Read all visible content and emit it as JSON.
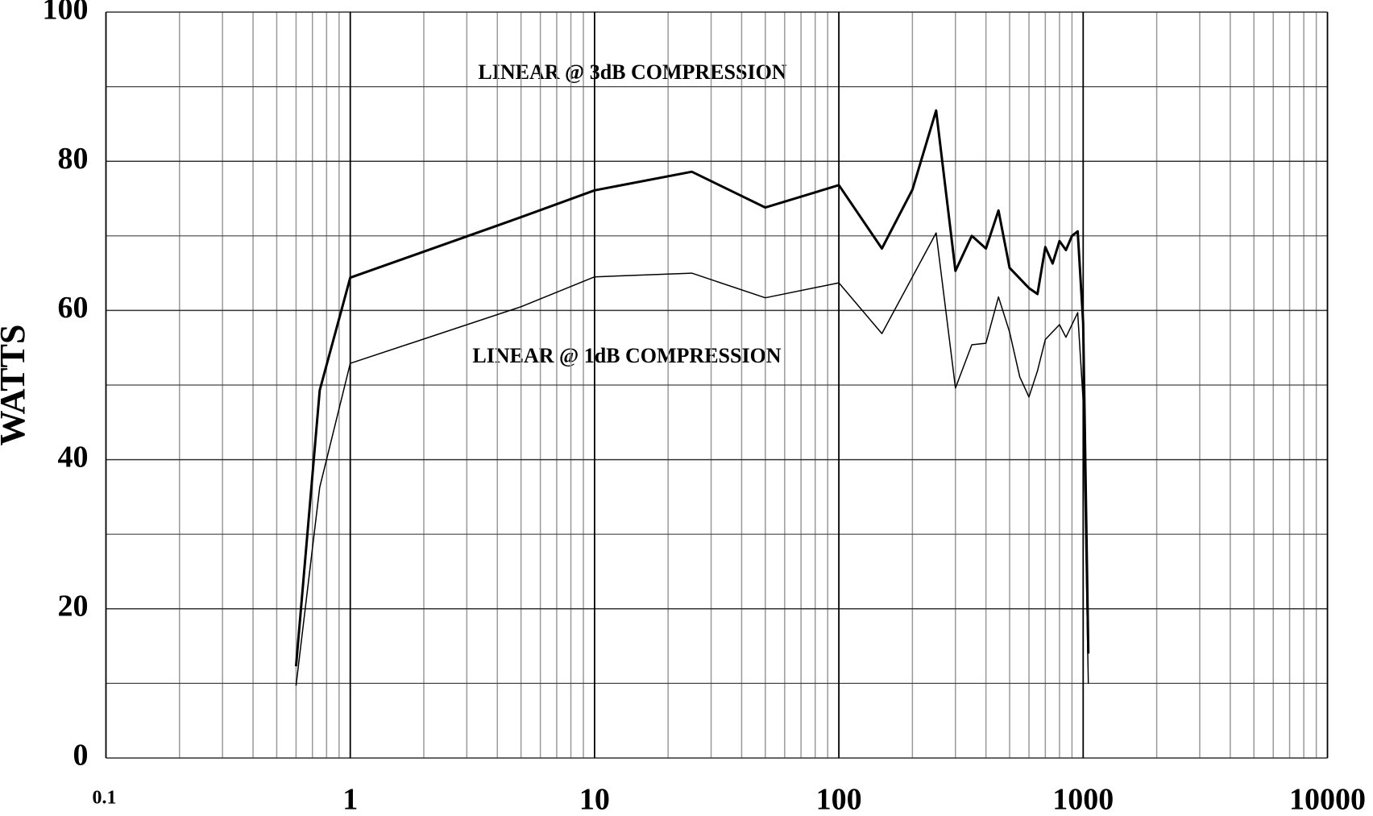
{
  "chart_data": {
    "type": "line",
    "y_label": "WATTS",
    "log_x": true,
    "grid": true,
    "xlim": [
      0.1,
      10000
    ],
    "ylim": [
      0,
      100
    ],
    "xticks": [
      {
        "value": 0.1,
        "label": "0.1"
      },
      1,
      10,
      100,
      1000,
      10000
    ],
    "yticks": [
      0,
      20,
      40,
      60,
      80,
      100
    ],
    "xminor": [
      0.2,
      0.3,
      0.4,
      0.5,
      0.6,
      0.7,
      0.8,
      0.9,
      2,
      3,
      4,
      5,
      6,
      7,
      8,
      9,
      20,
      30,
      40,
      50,
      60,
      70,
      80,
      90,
      200,
      300,
      400,
      500,
      600,
      700,
      800,
      900,
      2000,
      3000,
      4000,
      5000,
      6000,
      7000,
      8000,
      9000
    ],
    "yminor": [
      10,
      30,
      50,
      70,
      90
    ],
    "series": [
      {
        "name": "LINEAR @ 3dB COMPRESSION",
        "color": "#000000",
        "width": 3,
        "x": [
          0.6,
          0.75,
          1,
          5,
          10,
          25,
          50,
          100,
          150,
          200,
          250,
          300,
          350,
          400,
          450,
          500,
          600,
          650,
          700,
          750,
          800,
          850,
          900,
          950,
          1000,
          1050
        ],
        "values": [
          12.3,
          49.3,
          64.4,
          72.5,
          76.1,
          78.6,
          73.8,
          76.8,
          68.3,
          76.2,
          86.8,
          65.3,
          70,
          68.3,
          73.4,
          65.7,
          63,
          62.2,
          68.5,
          66.3,
          69.3,
          68.1,
          70,
          70.6,
          58.3,
          14
        ]
      },
      {
        "name": "LINEAR @ 1dB COMPRESSION",
        "color": "#000000",
        "width": 1.5,
        "x": [
          0.6,
          0.75,
          1,
          5,
          10,
          25,
          50,
          100,
          150,
          250,
          300,
          350,
          400,
          450,
          500,
          550,
          600,
          650,
          700,
          800,
          850,
          950,
          1000,
          1050
        ],
        "values": [
          9.7,
          36.3,
          52.9,
          60.5,
          64.5,
          65,
          61.7,
          63.7,
          56.9,
          70.4,
          49.6,
          55.4,
          55.6,
          61.8,
          57.1,
          51.1,
          48.4,
          51.9,
          56.1,
          58.1,
          56.4,
          59.7,
          47.8,
          10
        ]
      }
    ]
  }
}
